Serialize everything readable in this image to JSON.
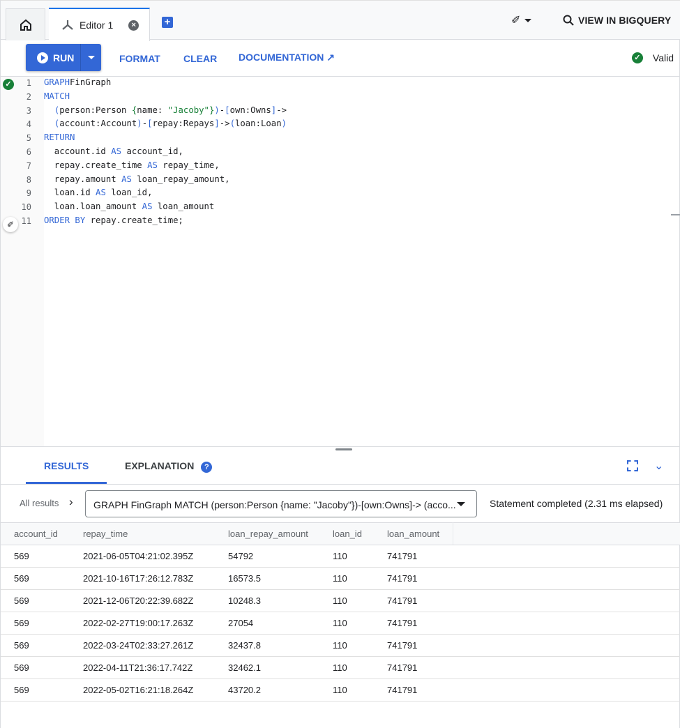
{
  "tabs": {
    "editor_label": "Editor 1",
    "icons": [
      "home-icon",
      "graph-icon",
      "close-icon",
      "add-tab-icon"
    ]
  },
  "header": {
    "bigquery_label": "VIEW IN BIGQUERY"
  },
  "toolbar": {
    "run_label": "RUN",
    "format_label": "FORMAT",
    "clear_label": "CLEAR",
    "documentation_label": "DOCUMENTATION",
    "valid_label": "Valid"
  },
  "colors": {
    "accent": "#3367d6",
    "valid": "#188038",
    "string": "#188038"
  },
  "editor": {
    "line_numbers": [
      "1",
      "2",
      "3",
      "4",
      "5",
      "6",
      "7",
      "8",
      "9",
      "10",
      "11"
    ],
    "lines": [
      [
        [
          "kw",
          "GRAPH"
        ],
        [
          "",
          "FinGraph"
        ]
      ],
      [
        [
          "kw",
          "MATCH"
        ]
      ],
      [
        [
          "",
          "  "
        ],
        [
          "pn",
          "("
        ],
        [
          "",
          "person:Person "
        ],
        [
          "st",
          "{"
        ],
        [
          "",
          "name: "
        ],
        [
          "st",
          "\"Jacoby\""
        ],
        [
          "st",
          "}"
        ],
        [
          "pn",
          ")"
        ],
        [
          "",
          "-"
        ],
        [
          "pn",
          "["
        ],
        [
          "",
          "own:Owns"
        ],
        [
          "pn",
          "]"
        ],
        [
          "",
          "->"
        ]
      ],
      [
        [
          "",
          "  "
        ],
        [
          "pn",
          "("
        ],
        [
          "",
          "account:Account"
        ],
        [
          "pn",
          ")"
        ],
        [
          "",
          "-"
        ],
        [
          "pn",
          "["
        ],
        [
          "",
          "repay:Repays"
        ],
        [
          "pn",
          "]"
        ],
        [
          "",
          "->"
        ],
        [
          "pn",
          "("
        ],
        [
          "",
          "loan:Loan"
        ],
        [
          "pn",
          ")"
        ]
      ],
      [
        [
          "kw",
          "RETURN"
        ]
      ],
      [
        [
          "",
          "  account.id "
        ],
        [
          "kw",
          "AS"
        ],
        [
          "",
          " account_id,"
        ]
      ],
      [
        [
          "",
          "  repay.create_time "
        ],
        [
          "kw",
          "AS"
        ],
        [
          "",
          " repay_time,"
        ]
      ],
      [
        [
          "",
          "  repay.amount "
        ],
        [
          "kw",
          "AS"
        ],
        [
          "",
          " loan_repay_amount,"
        ]
      ],
      [
        [
          "",
          "  loan.id "
        ],
        [
          "kw",
          "AS"
        ],
        [
          "",
          " loan_id,"
        ]
      ],
      [
        [
          "",
          "  loan.loan_amount "
        ],
        [
          "kw",
          "AS"
        ],
        [
          "",
          " loan_amount"
        ]
      ],
      [
        [
          "kw",
          "ORDER BY"
        ],
        [
          "",
          " repay.create_time;"
        ]
      ]
    ]
  },
  "results": {
    "tabs": [
      "RESULTS",
      "EXPLANATION"
    ],
    "all_results": "All results",
    "statement": "GRAPH FinGraph MATCH (person:Person {name: \"Jacoby\"})-[own:Owns]-> (acco...",
    "status": "Statement completed (2.31 ms elapsed)",
    "columns": [
      "account_id",
      "repay_time",
      "loan_repay_amount",
      "loan_id",
      "loan_amount"
    ],
    "rows": [
      [
        "569",
        "2021-06-05T04:21:02.395Z",
        "54792",
        "110",
        "741791"
      ],
      [
        "569",
        "2021-10-16T17:26:12.783Z",
        "16573.5",
        "110",
        "741791"
      ],
      [
        "569",
        "2021-12-06T20:22:39.682Z",
        "10248.3",
        "110",
        "741791"
      ],
      [
        "569",
        "2022-02-27T19:00:17.263Z",
        "27054",
        "110",
        "741791"
      ],
      [
        "569",
        "2022-03-24T02:33:27.261Z",
        "32437.8",
        "110",
        "741791"
      ],
      [
        "569",
        "2022-04-11T21:36:17.742Z",
        "32462.1",
        "110",
        "741791"
      ],
      [
        "569",
        "2022-05-02T16:21:18.264Z",
        "43720.2",
        "110",
        "741791"
      ]
    ]
  }
}
